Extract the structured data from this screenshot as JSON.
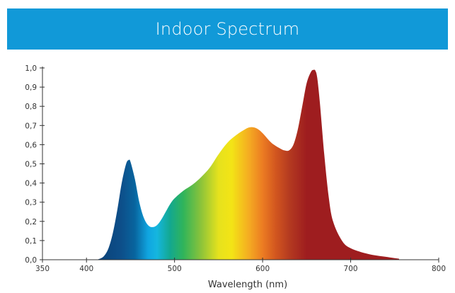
{
  "header": {
    "title": "Indoor Spectrum",
    "background_color": "#1199d8"
  },
  "chart_data": {
    "type": "area",
    "title": "Indoor Spectrum",
    "xlabel": "Wavelength (nm)",
    "ylabel": "",
    "xlim": [
      350,
      800
    ],
    "ylim": [
      0,
      1.0
    ],
    "x_ticks": [
      350,
      400,
      500,
      600,
      700,
      800
    ],
    "x_tick_labels": [
      "350",
      "400",
      "500",
      "600",
      "700",
      "800"
    ],
    "y_ticks": [
      0,
      0.1,
      0.2,
      0.3,
      0.4,
      0.5,
      0.6,
      0.7,
      0.8,
      0.9,
      1.0
    ],
    "y_tick_labels": [
      "0,0",
      "0,1",
      "0,2",
      "0,3",
      "0,4",
      "0,5",
      "0,6",
      "0,7",
      "0,8",
      "0,9",
      "1,0"
    ],
    "grid": false,
    "legend": "none",
    "fill": "visible-spectrum gradient",
    "series": [
      {
        "x": [
          400,
          410,
          415,
          420,
          425,
          430,
          435,
          440,
          445,
          448,
          450,
          455,
          460,
          465,
          470,
          475,
          480,
          485,
          490,
          495,
          500,
          510,
          520,
          530,
          540,
          550,
          560,
          570,
          580,
          585,
          590,
          595,
          600,
          610,
          620,
          625,
          630,
          635,
          640,
          645,
          650,
          655,
          658,
          660,
          662,
          665,
          670,
          675,
          680,
          690,
          700,
          720,
          740,
          755
        ],
        "y": [
          0.0,
          0.0,
          0.005,
          0.02,
          0.06,
          0.14,
          0.26,
          0.4,
          0.5,
          0.52,
          0.51,
          0.42,
          0.3,
          0.22,
          0.18,
          0.17,
          0.18,
          0.21,
          0.25,
          0.29,
          0.32,
          0.36,
          0.39,
          0.43,
          0.48,
          0.55,
          0.61,
          0.65,
          0.68,
          0.69,
          0.69,
          0.68,
          0.66,
          0.61,
          0.58,
          0.57,
          0.57,
          0.6,
          0.68,
          0.8,
          0.92,
          0.98,
          0.99,
          0.985,
          0.95,
          0.82,
          0.55,
          0.33,
          0.2,
          0.1,
          0.06,
          0.03,
          0.015,
          0.005
        ]
      }
    ]
  }
}
